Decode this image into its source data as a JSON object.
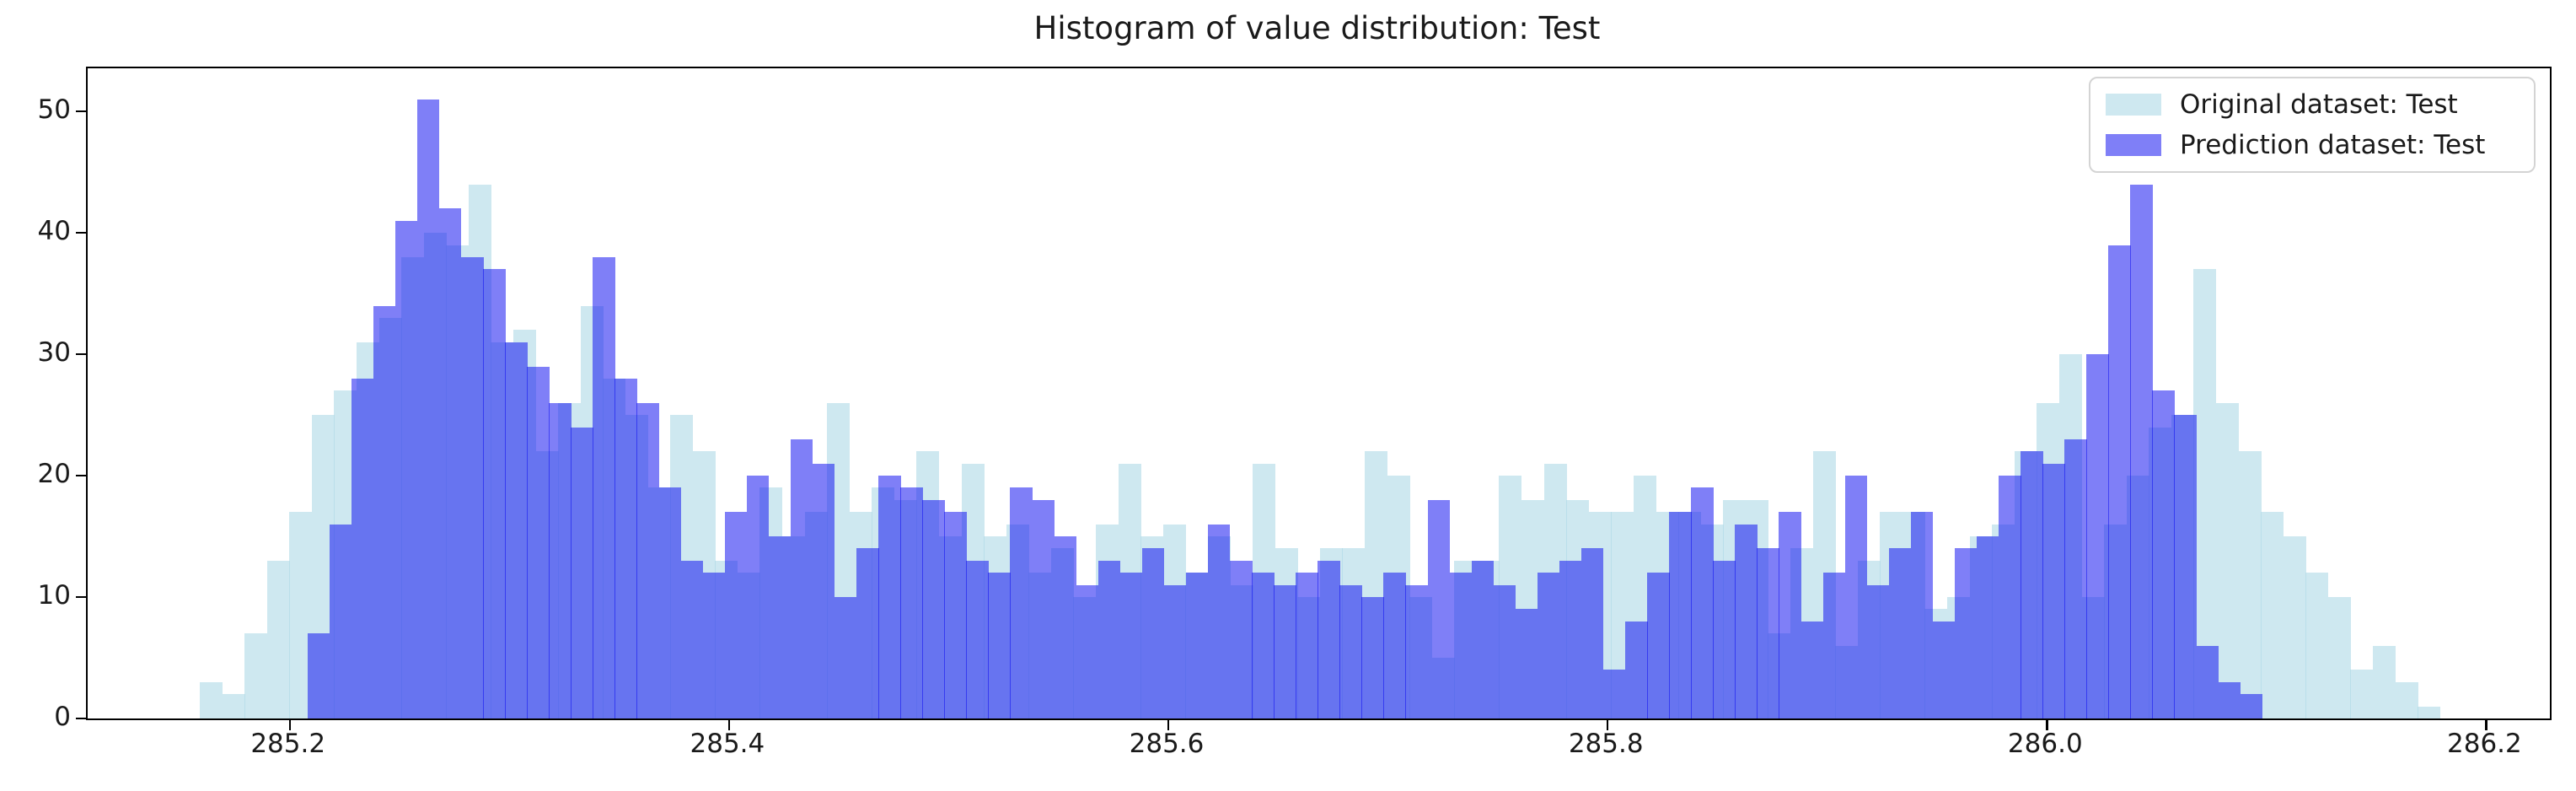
{
  "title": "Histogram of value distribution: Test",
  "legend": {
    "items": [
      {
        "label": "Original dataset: Test",
        "color": "rgba(173,216,230,0.6)",
        "icon": "swatch-lightblue"
      },
      {
        "label": "Prediction dataset: Test",
        "color": "rgba(10,10,240,0.52)",
        "icon": "swatch-blue"
      }
    ]
  },
  "axes": {
    "x_tick_labels": [
      "285.2",
      "285.4",
      "285.6",
      "285.8",
      "286.0",
      "286.2"
    ],
    "x_tick_values": [
      285.2,
      285.4,
      285.6,
      285.8,
      286.0,
      286.2
    ],
    "y_tick_labels": [
      "0",
      "10",
      "20",
      "30",
      "40",
      "50"
    ],
    "y_tick_values": [
      0,
      10,
      20,
      30,
      40,
      50
    ],
    "xlim": [
      285.108,
      286.229
    ],
    "ylim": [
      0,
      53.55
    ],
    "grid": false
  },
  "chart_data": {
    "type": "bar",
    "subtype": "overlapping-histogram",
    "title": "Histogram of value distribution: Test",
    "xlabel": "",
    "ylabel": "",
    "xlim": [
      285.108,
      286.229
    ],
    "ylim": [
      0,
      53.55
    ],
    "legend_position": "upper right",
    "grid": false,
    "series": [
      {
        "name": "Original dataset: Test",
        "color": "rgba(173,216,230,0.6)",
        "bin_start": 285.159,
        "bin_width": 0.0102,
        "counts": [
          3,
          2,
          7,
          13,
          17,
          25,
          27,
          31,
          33,
          38,
          40,
          39,
          44,
          31,
          32,
          22,
          26,
          34,
          28,
          25,
          19,
          25,
          22,
          13,
          12,
          19,
          15,
          17,
          26,
          17,
          19,
          18,
          22,
          15,
          21,
          15,
          16,
          12,
          14,
          10,
          16,
          21,
          15,
          16,
          12,
          15,
          11,
          21,
          14,
          10,
          14,
          14,
          22,
          20,
          10,
          5,
          13,
          13,
          20,
          18,
          21,
          18,
          17,
          17,
          20,
          17,
          17,
          16,
          18,
          18,
          7,
          14,
          22,
          6,
          13,
          17,
          17,
          9,
          10,
          15,
          16,
          22,
          26,
          30,
          10,
          16,
          20,
          24,
          25,
          37,
          26,
          22,
          17,
          15,
          12,
          10,
          4,
          6,
          3,
          1
        ]
      },
      {
        "name": "Prediction dataset: Test",
        "color": "rgba(10,10,240,0.52)",
        "bin_start": 285.208,
        "bin_width": 0.01,
        "counts": [
          7,
          16,
          28,
          34,
          41,
          51,
          42,
          38,
          37,
          31,
          29,
          26,
          24,
          38,
          28,
          26,
          19,
          13,
          12,
          17,
          20,
          15,
          23,
          21,
          10,
          14,
          20,
          19,
          18,
          17,
          13,
          12,
          19,
          18,
          15,
          11,
          13,
          12,
          14,
          11,
          12,
          16,
          13,
          12,
          11,
          12,
          13,
          11,
          10,
          12,
          11,
          18,
          12,
          13,
          11,
          9,
          12,
          13,
          14,
          4,
          8,
          12,
          17,
          19,
          13,
          16,
          14,
          17,
          8,
          12,
          20,
          11,
          14,
          17,
          8,
          14,
          15,
          20,
          22,
          21,
          23,
          30,
          39,
          44,
          27,
          25,
          6,
          3,
          2
        ]
      }
    ]
  }
}
